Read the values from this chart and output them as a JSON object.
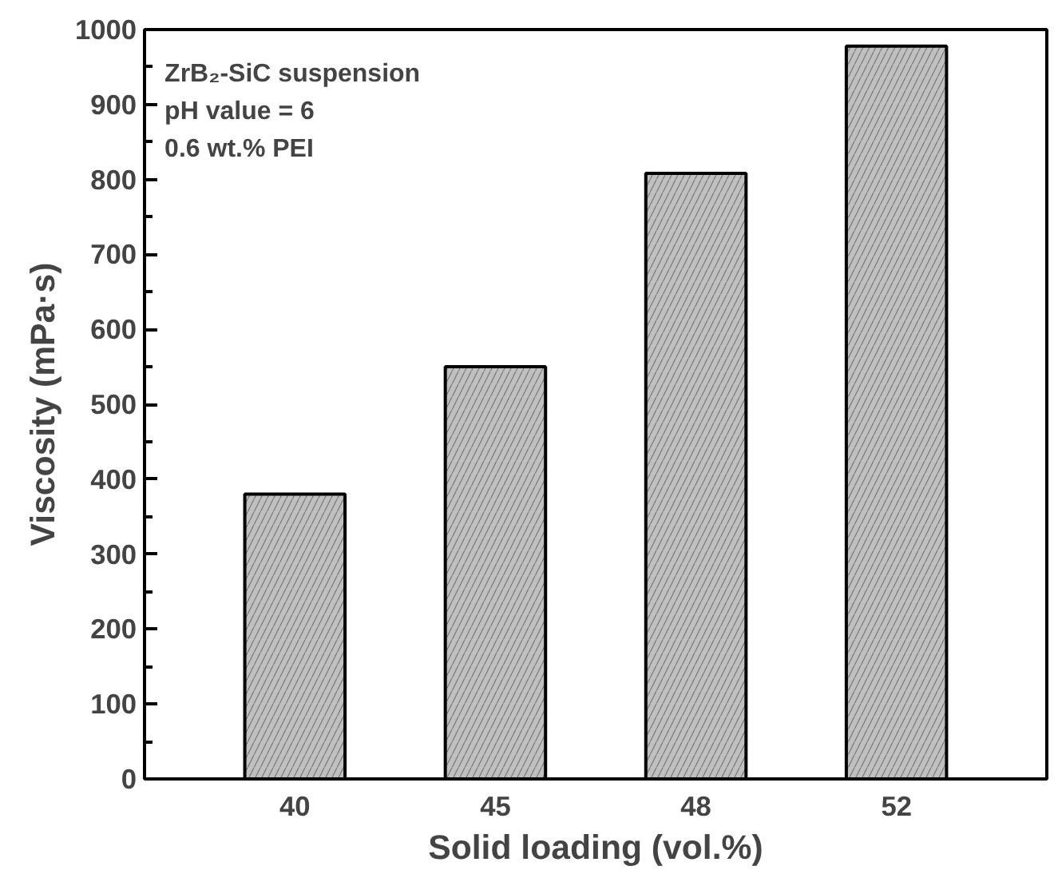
{
  "chart_data": {
    "type": "bar",
    "xlabel": "Solid loading (vol.%)",
    "ylabel": "Viscosity (mPa·s)",
    "categories": [
      "40",
      "45",
      "48",
      "52"
    ],
    "values": [
      380,
      550,
      808,
      978
    ],
    "color": "#c0c0c0",
    "ylim": [
      0,
      1000
    ],
    "yticks": [
      0,
      100,
      200,
      300,
      400,
      500,
      600,
      700,
      800,
      900,
      1000
    ],
    "grid": false,
    "annotations": [
      "ZrB₂-SiC suspension",
      "pH value = 6",
      "0.6 wt.% PEI"
    ]
  }
}
